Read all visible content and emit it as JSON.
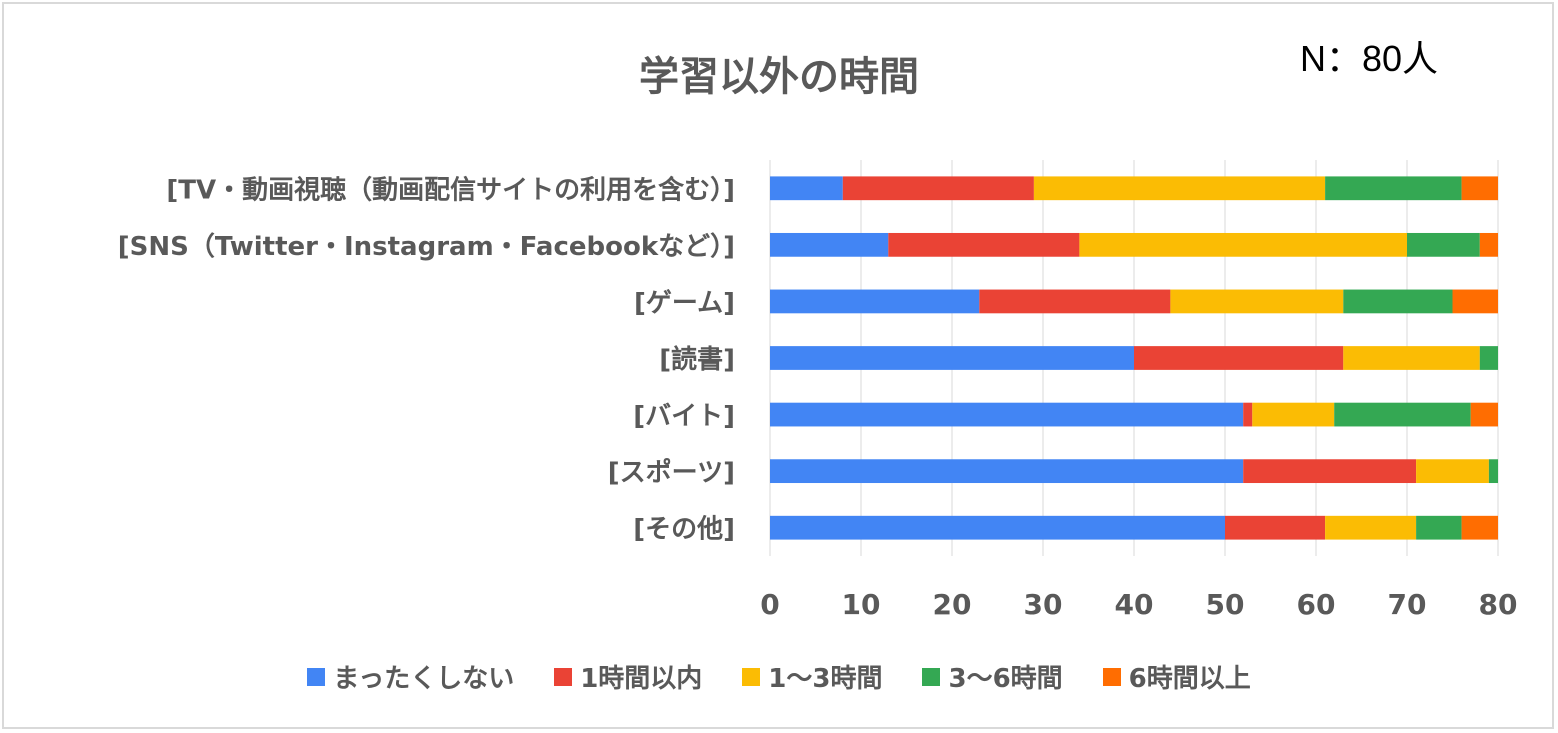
{
  "chart_data": {
    "type": "bar",
    "orientation": "horizontal",
    "stacked": true,
    "title": "学習以外の時間",
    "annotation": "N：80人",
    "categories": [
      "[TV・動画視聴（動画配信サイトの利用を含む）]",
      "[SNS（Twitter・Instagram・Facebookなど）]",
      "[ゲーム]",
      "[読書]",
      "[バイト]",
      "[スポーツ]",
      "[その他]"
    ],
    "series": [
      {
        "name": "まったくしない",
        "color": "#4285f4",
        "values": [
          8,
          13,
          23,
          40,
          52,
          52,
          50
        ]
      },
      {
        "name": "1時間以内",
        "color": "#ea4335",
        "values": [
          21,
          21,
          21,
          23,
          1,
          19,
          11
        ]
      },
      {
        "name": "1〜3時間",
        "color": "#fbbc04",
        "values": [
          32,
          36,
          19,
          15,
          9,
          8,
          10
        ]
      },
      {
        "name": "3〜6時間",
        "color": "#34a853",
        "values": [
          15,
          8,
          12,
          2,
          15,
          1,
          5
        ]
      },
      {
        "name": "6時間以上",
        "color": "#ff6d01",
        "values": [
          4,
          2,
          5,
          0,
          3,
          0,
          4
        ]
      }
    ],
    "xlim": [
      0,
      80
    ],
    "xticks": [
      "0",
      "10",
      "20",
      "30",
      "40",
      "50",
      "60",
      "70",
      "80"
    ],
    "grid": true,
    "legend_position": "bottom"
  }
}
